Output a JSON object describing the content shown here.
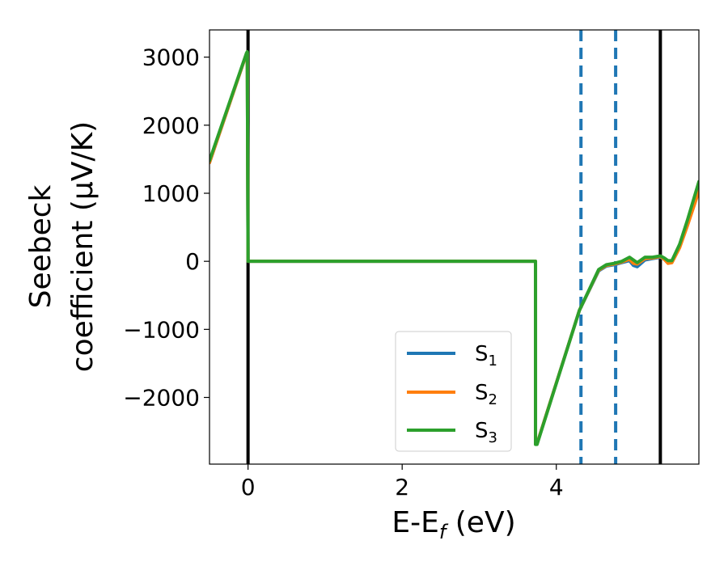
{
  "chart_data": {
    "type": "line",
    "title": "",
    "xlabel": "E-E",
    "xlabel_sub": "f",
    "xlabel_unit": " (eV)",
    "ylabel_line1": "Seebeck",
    "ylabel_line2": "coefficient  (μV/K)",
    "xlim": [
      -0.5,
      5.85
    ],
    "ylim": [
      -2980,
      3400
    ],
    "xticks": [
      0,
      2,
      4
    ],
    "xtick_labels": [
      "0",
      "2",
      "4"
    ],
    "yticks": [
      3000,
      2000,
      1000,
      0,
      -1000,
      -2000
    ],
    "ytick_labels": [
      "3000",
      "2000",
      "1000",
      "0",
      "−1000",
      "−2000"
    ],
    "grid": false,
    "legend_position": "lower-right",
    "series": [
      {
        "name": "S",
        "subscript": "1",
        "color": "#1f77b4",
        "x": [
          -0.5,
          -0.02,
          -0.01,
          0.0,
          3.73,
          3.73,
          3.75,
          4.3,
          4.55,
          4.65,
          4.75,
          4.85,
          4.95,
          5.0,
          5.05,
          5.15,
          5.25,
          5.35,
          5.4,
          5.45,
          5.5,
          5.6,
          5.7,
          5.85
        ],
        "y": [
          1450,
          3050,
          3060,
          0,
          0,
          -2680,
          -2680,
          -720,
          -140,
          -70,
          -50,
          -20,
          10,
          -60,
          -80,
          20,
          40,
          60,
          30,
          -20,
          -10,
          230,
          560,
          1070
        ]
      },
      {
        "name": "S",
        "subscript": "2",
        "color": "#ff7f0e",
        "x": [
          -0.5,
          -0.02,
          -0.01,
          0.0,
          3.73,
          3.73,
          3.75,
          4.3,
          4.55,
          4.65,
          4.75,
          4.85,
          4.95,
          5.0,
          5.05,
          5.15,
          5.25,
          5.35,
          5.4,
          5.45,
          5.5,
          5.6,
          5.7,
          5.85
        ],
        "y": [
          1450,
          3050,
          3060,
          0,
          0,
          -2680,
          -2680,
          -720,
          -130,
          -60,
          -40,
          -10,
          30,
          -30,
          -40,
          40,
          50,
          70,
          30,
          -30,
          -20,
          200,
          520,
          1030
        ]
      },
      {
        "name": "S",
        "subscript": "3",
        "color": "#2ca02c",
        "x": [
          -0.5,
          -0.02,
          -0.01,
          0.0,
          3.73,
          3.73,
          3.75,
          4.3,
          4.55,
          4.65,
          4.75,
          4.85,
          4.95,
          5.0,
          5.05,
          5.15,
          5.25,
          5.35,
          5.4,
          5.45,
          5.5,
          5.6,
          5.7,
          5.85
        ],
        "y": [
          1480,
          3060,
          3080,
          0,
          0,
          -2690,
          -2690,
          -720,
          -120,
          -50,
          -30,
          0,
          60,
          20,
          -20,
          60,
          60,
          80,
          50,
          10,
          10,
          250,
          600,
          1170
        ]
      }
    ],
    "vlines": [
      {
        "x": 0.0,
        "style": "solid",
        "color": "#000000"
      },
      {
        "x": 5.35,
        "style": "solid",
        "color": "#000000"
      },
      {
        "x": 4.32,
        "style": "dashed",
        "color": "#1f77b4"
      },
      {
        "x": 4.77,
        "style": "dashed",
        "color": "#1f77b4"
      }
    ]
  }
}
